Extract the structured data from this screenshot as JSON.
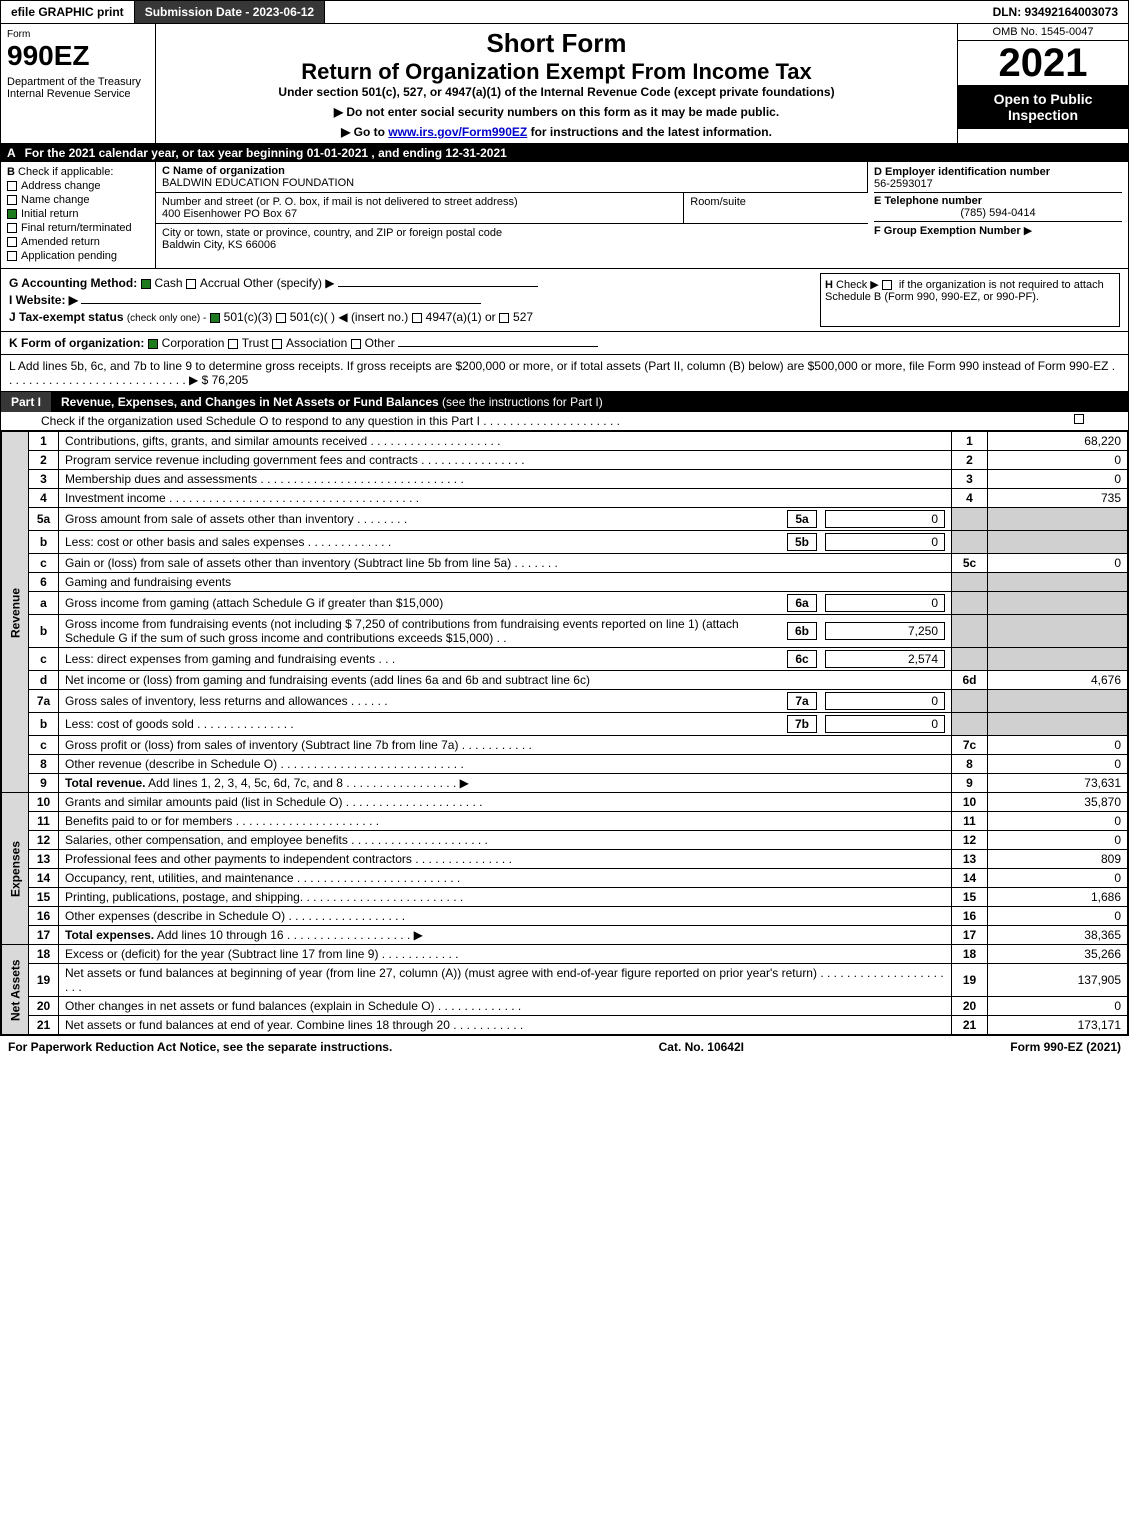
{
  "header": {
    "efile_btn": "efile GRAPHIC print",
    "submission_btn": "Submission Date - 2023-06-12",
    "dln_label": "DLN: 93492164003073"
  },
  "top": {
    "form_label": "Form",
    "form_number": "990EZ",
    "department": "Department of the Treasury\nInternal Revenue Service",
    "title": "Short Form",
    "subtitle": "Return of Organization Exempt From Income Tax",
    "under_section": "Under section 501(c), 527, or 4947(a)(1) of the Internal Revenue Code (except private foundations)",
    "note1": "▶ Do not enter social security numbers on this form as it may be made public.",
    "note2_prefix": "▶ Go to ",
    "note2_link": "www.irs.gov/Form990EZ",
    "note2_suffix": " for instructions and the latest information.",
    "omb": "OMB No. 1545-0047",
    "year": "2021",
    "badge": "Open to Public Inspection"
  },
  "sec_a": {
    "label": "A",
    "text": "For the 2021 calendar year, or tax year beginning 01-01-2021 , and ending 12-31-2021"
  },
  "sec_b": {
    "label": "B",
    "heading": "Check if applicable:",
    "opts": [
      {
        "label": "Address change",
        "checked": false
      },
      {
        "label": "Name change",
        "checked": false
      },
      {
        "label": "Initial return",
        "checked": true
      },
      {
        "label": "Final return/terminated",
        "checked": false
      },
      {
        "label": "Amended return",
        "checked": false
      },
      {
        "label": "Application pending",
        "checked": false
      }
    ]
  },
  "sec_c": {
    "name_label": "C Name of organization",
    "name": "BALDWIN EDUCATION FOUNDATION",
    "addr_label": "Number and street (or P. O. box, if mail is not delivered to street address)",
    "room_label": "Room/suite",
    "addr": "400 Eisenhower PO Box 67",
    "city_label": "City or town, state or province, country, and ZIP or foreign postal code",
    "city": "Baldwin City, KS  66006"
  },
  "sec_d": {
    "label": "D Employer identification number",
    "ein": "56-2593017",
    "tel_label": "E Telephone number",
    "tel": "(785) 594-0414",
    "group_label": "F Group Exemption Number",
    "arrow": "▶"
  },
  "sec_g": {
    "g_label": "G Accounting Method:",
    "g_cash": "Cash",
    "g_accrual": "Accrual",
    "g_other": "Other (specify) ▶",
    "h_label": "H",
    "h_text": "Check ▶",
    "h_text2": "if the organization is not required to attach Schedule B (Form 990, 990-EZ, or 990-PF).",
    "i_label": "I Website: ▶",
    "j_label": "J Tax-exempt status",
    "j_note": "(check only one) -",
    "j_501c3": "501(c)(3)",
    "j_501c": "501(c)(  ) ◀ (insert no.)",
    "j_4947": "4947(a)(1) or",
    "j_527": "527",
    "k_label": "K Form of organization:",
    "k_corp": "Corporation",
    "k_trust": "Trust",
    "k_assoc": "Association",
    "k_other": "Other",
    "l_text": "L Add lines 5b, 6c, and 7b to line 9 to determine gross receipts. If gross receipts are $200,000 or more, or if total assets (Part II, column (B) below) are $500,000 or more, file Form 990 instead of Form 990-EZ . . . . . . . . . . . . . . . . . . . . . . . . . . . .  ▶ $ 76,205"
  },
  "part1": {
    "label": "Part I",
    "title": "Revenue, Expenses, and Changes in Net Assets or Fund Balances",
    "title_suffix": " (see the instructions for Part I)",
    "check_note": "Check if the organization used Schedule O to respond to any question in this Part I . . . . . . . . . . . . . . . . . . . . .",
    "check_val": "☐",
    "sections": {
      "revenue": "Revenue",
      "expenses": "Expenses",
      "netassets": "Net Assets"
    },
    "lines": [
      {
        "num": "1",
        "desc": "Contributions, gifts, grants, and similar amounts received . . . . . . . . . . . . . . . . . . . .",
        "rnum": "1",
        "amt": "68,220"
      },
      {
        "num": "2",
        "desc": "Program service revenue including government fees and contracts . . . . . . . . . . . . . . . .",
        "rnum": "2",
        "amt": "0"
      },
      {
        "num": "3",
        "desc": "Membership dues and assessments . . . . . . . . . . . . . . . . . . . . . . . . . . . . . . .",
        "rnum": "3",
        "amt": "0"
      },
      {
        "num": "4",
        "desc": "Investment income . . . . . . . . . . . . . . . . . . . . . . . . . . . . . . . . . . . . . .",
        "rnum": "4",
        "amt": "735"
      },
      {
        "num": "5a",
        "desc": "Gross amount from sale of assets other than inventory . . . . . . . .",
        "box": "5a",
        "boxval": "0"
      },
      {
        "num": "b",
        "desc": "Less: cost or other basis and sales expenses . . . . . . . . . . . . .",
        "box": "5b",
        "boxval": "0"
      },
      {
        "num": "c",
        "desc": "Gain or (loss) from sale of assets other than inventory (Subtract line 5b from line 5a) . . . . . . .",
        "rnum": "5c",
        "amt": "0"
      },
      {
        "num": "6",
        "desc": "Gaming and fundraising events"
      },
      {
        "num": "a",
        "desc": "Gross income from gaming (attach Schedule G if greater than $15,000)",
        "box": "6a",
        "boxval": "0"
      },
      {
        "num": "b",
        "desc": "Gross income from fundraising events (not including $  7,250             of contributions from fundraising events reported on line 1) (attach Schedule G if the sum of such gross income and contributions exceeds $15,000)    .  .",
        "box": "6b",
        "boxval": "7,250"
      },
      {
        "num": "c",
        "desc": "Less: direct expenses from gaming and fundraising events    .  .  .",
        "box": "6c",
        "boxval": "2,574"
      },
      {
        "num": "d",
        "desc": "Net income or (loss) from gaming and fundraising events (add lines 6a and 6b and subtract line 6c)",
        "rnum": "6d",
        "amt": "4,676"
      },
      {
        "num": "7a",
        "desc": "Gross sales of inventory, less returns and allowances . . . . . .",
        "box": "7a",
        "boxval": "0"
      },
      {
        "num": "b",
        "desc": "Less: cost of goods sold        .  .  .  .  .  .  .  .  .  .  .  .  .  .  .",
        "box": "7b",
        "boxval": "0"
      },
      {
        "num": "c",
        "desc": "Gross profit or (loss) from sales of inventory (Subtract line 7b from line 7a) . . . . . . . . . . .",
        "rnum": "7c",
        "amt": "0"
      },
      {
        "num": "8",
        "desc": "Other revenue (describe in Schedule O) . . . . . . . . . . . . . . . . . . . . . . . . . . . .",
        "rnum": "8",
        "amt": "0"
      },
      {
        "num": "9",
        "desc": "Total revenue. Add lines 1, 2, 3, 4, 5c, 6d, 7c, and 8  . . . . . . . . . . . . . . . . .    ▶",
        "rnum": "9",
        "amt": "73,631",
        "bold": true
      }
    ],
    "expense_lines": [
      {
        "num": "10",
        "desc": "Grants and similar amounts paid (list in Schedule O) . . . . . . . . . . . . . . . . . . . . .",
        "rnum": "10",
        "amt": "35,870"
      },
      {
        "num": "11",
        "desc": "Benefits paid to or for members     .  .  .  .  .  .  .  .  .  .  .  .  .  .  .  .  .  .  .  .  .  .",
        "rnum": "11",
        "amt": "0"
      },
      {
        "num": "12",
        "desc": "Salaries, other compensation, and employee benefits . . . . . . . . . . . . . . . . . . . . .",
        "rnum": "12",
        "amt": "0"
      },
      {
        "num": "13",
        "desc": "Professional fees and other payments to independent contractors . . . . . . . . . . . . . . .",
        "rnum": "13",
        "amt": "809"
      },
      {
        "num": "14",
        "desc": "Occupancy, rent, utilities, and maintenance . . . . . . . . . . . . . . . . . . . . . . . . .",
        "rnum": "14",
        "amt": "0"
      },
      {
        "num": "15",
        "desc": "Printing, publications, postage, and shipping. . . . . . . . . . . . . . . . . . . . . . . . .",
        "rnum": "15",
        "amt": "1,686"
      },
      {
        "num": "16",
        "desc": "Other expenses (describe in Schedule O)     .  .  .  .  .  .  .  .  .  .  .  .  .  .  .  .  .  .",
        "rnum": "16",
        "amt": "0"
      },
      {
        "num": "17",
        "desc": "Total expenses. Add lines 10 through 16     .  .  .  .  .  .  .  .  .  .  .  .  .  .  .  .  .  .  .    ▶",
        "rnum": "17",
        "amt": "38,365",
        "bold": true
      }
    ],
    "net_lines": [
      {
        "num": "18",
        "desc": "Excess or (deficit) for the year (Subtract line 17 from line 9)        .  .  .  .  .  .  .  .  .  .  .  .",
        "rnum": "18",
        "amt": "35,266"
      },
      {
        "num": "19",
        "desc": "Net assets or fund balances at beginning of year (from line 27, column (A)) (must agree with end-of-year figure reported on prior year's return) . . . . . . . . . . . . . . . . . . . . . .",
        "rnum": "19",
        "amt": "137,905"
      },
      {
        "num": "20",
        "desc": "Other changes in net assets or fund balances (explain in Schedule O) . . . . . . . . . . . . .",
        "rnum": "20",
        "amt": "0"
      },
      {
        "num": "21",
        "desc": "Net assets or fund balances at end of year. Combine lines 18 through 20 . . . . . . . . . . .",
        "rnum": "21",
        "amt": "173,171"
      }
    ]
  },
  "footer": {
    "left": "For Paperwork Reduction Act Notice, see the separate instructions.",
    "center": "Cat. No. 10642I",
    "right": "Form 990-EZ (2021)"
  }
}
